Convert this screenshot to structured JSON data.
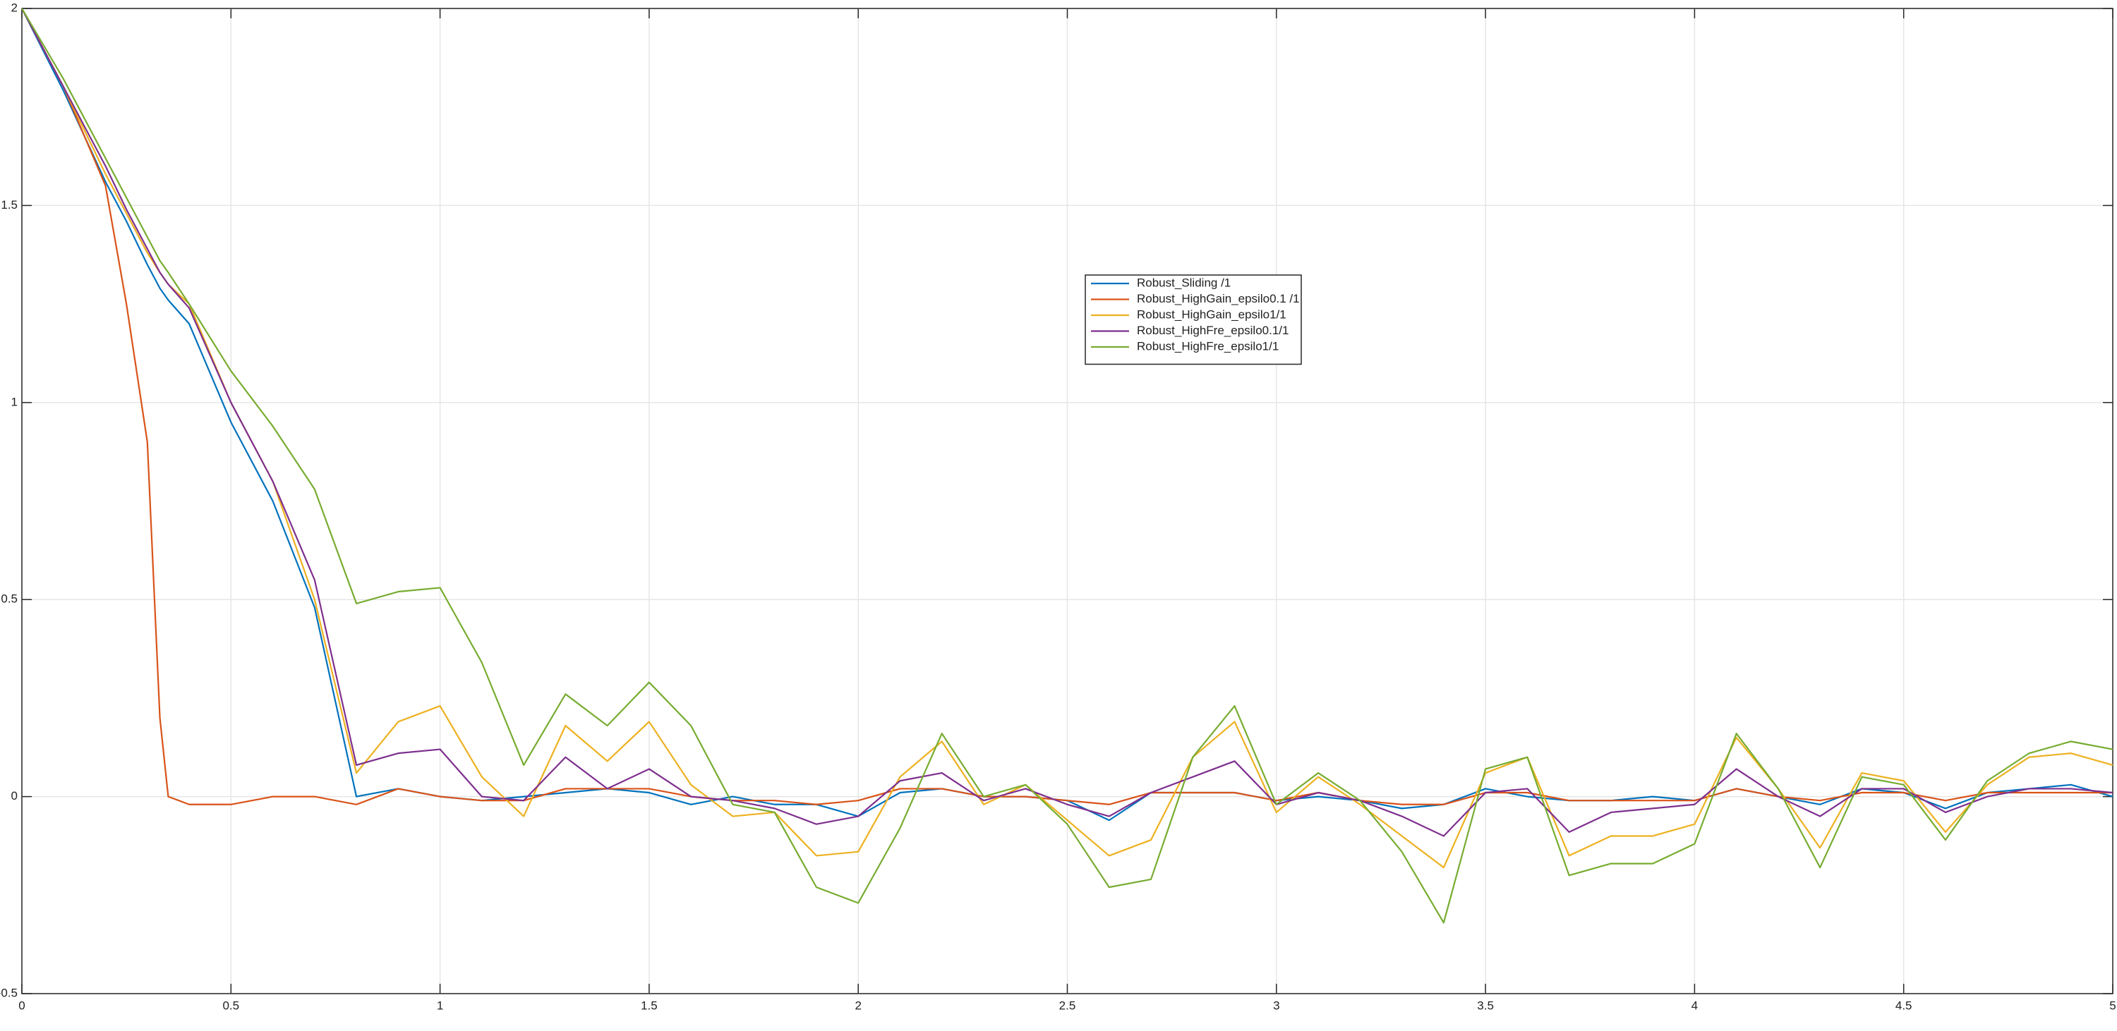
{
  "chart_data": {
    "type": "line",
    "x": [
      0,
      0.1,
      0.2,
      0.25,
      0.3,
      0.33,
      0.35,
      0.4,
      0.5,
      0.6,
      0.7,
      0.8,
      0.9,
      1.0,
      1.1,
      1.2,
      1.3,
      1.4,
      1.5,
      1.6,
      1.7,
      1.8,
      1.9,
      2.0,
      2.1,
      2.2,
      2.3,
      2.4,
      2.5,
      2.6,
      2.7,
      2.8,
      2.9,
      3.0,
      3.1,
      3.2,
      3.3,
      3.4,
      3.5,
      3.6,
      3.7,
      3.8,
      3.9,
      4.0,
      4.1,
      4.2,
      4.3,
      4.4,
      4.5,
      4.6,
      4.7,
      4.8,
      4.9,
      5.0
    ],
    "series": [
      {
        "name": "Robust_Sliding /1",
        "color": "#0072BD",
        "values": [
          2,
          1.79,
          1.56,
          1.46,
          1.35,
          1.29,
          1.26,
          1.2,
          0.95,
          0.75,
          0.48,
          0.0,
          0.02,
          0.0,
          -0.01,
          0.0,
          0.01,
          0.02,
          0.01,
          -0.02,
          0.0,
          -0.02,
          -0.02,
          -0.05,
          0.01,
          0.02,
          0.0,
          0.0,
          -0.01,
          -0.06,
          0.01,
          0.01,
          0.01,
          -0.01,
          0.0,
          -0.01,
          -0.03,
          -0.02,
          0.02,
          0.0,
          -0.01,
          -0.01,
          0.0,
          -0.01,
          0.02,
          0.0,
          -0.02,
          0.02,
          0.01,
          -0.03,
          0.01,
          0.02,
          0.03,
          0.0
        ]
      },
      {
        "name": "Robust_HighGain_epsilo0.1 /1",
        "color": "#D95319",
        "values": [
          2,
          1.8,
          1.55,
          1.25,
          0.9,
          0.2,
          0.0,
          -0.02,
          -0.02,
          0.0,
          0.0,
          -0.02,
          0.02,
          0.0,
          -0.01,
          -0.01,
          0.02,
          0.02,
          0.02,
          0.0,
          -0.01,
          -0.01,
          -0.02,
          -0.01,
          0.02,
          0.02,
          0.0,
          0.0,
          -0.01,
          -0.02,
          0.01,
          0.01,
          0.01,
          -0.01,
          0.01,
          -0.01,
          -0.02,
          -0.02,
          0.01,
          0.01,
          -0.01,
          -0.01,
          -0.01,
          -0.01,
          0.02,
          0.0,
          -0.01,
          0.01,
          0.01,
          -0.01,
          0.01,
          0.01,
          0.01,
          0.01
        ]
      },
      {
        "name": "Robust_HighGain_epsilo1/1",
        "color": "#EDB120",
        "values": [
          2,
          1.8,
          1.58,
          1.48,
          1.38,
          1.33,
          1.3,
          1.25,
          1.0,
          0.8,
          0.5,
          0.06,
          0.19,
          0.23,
          0.05,
          -0.05,
          0.18,
          0.09,
          0.19,
          0.03,
          -0.05,
          -0.04,
          -0.15,
          -0.14,
          0.05,
          0.14,
          -0.02,
          0.03,
          -0.06,
          -0.15,
          -0.11,
          0.1,
          0.19,
          -0.04,
          0.05,
          -0.02,
          -0.1,
          -0.18,
          0.06,
          0.1,
          -0.15,
          -0.1,
          -0.1,
          -0.07,
          0.15,
          0.02,
          -0.13,
          0.06,
          0.04,
          -0.09,
          0.03,
          0.1,
          0.11,
          0.08
        ]
      },
      {
        "name": "Robust_HighFre_epsilo0.1/1",
        "color": "#7E2F8E",
        "values": [
          2,
          1.8,
          1.6,
          1.49,
          1.39,
          1.33,
          1.3,
          1.24,
          1.0,
          0.8,
          0.55,
          0.08,
          0.11,
          0.12,
          0.0,
          -0.01,
          0.1,
          0.02,
          0.07,
          0.0,
          -0.01,
          -0.03,
          -0.07,
          -0.05,
          0.04,
          0.06,
          -0.01,
          0.02,
          -0.02,
          -0.05,
          0.01,
          0.05,
          0.09,
          -0.02,
          0.01,
          -0.01,
          -0.05,
          -0.1,
          0.01,
          0.02,
          -0.09,
          -0.04,
          -0.03,
          -0.02,
          0.07,
          0.0,
          -0.05,
          0.02,
          0.02,
          -0.04,
          0.0,
          0.02,
          0.02,
          0.01
        ]
      },
      {
        "name": "Robust_HighFre_epsilo1/1",
        "color": "#77AC30",
        "values": [
          2,
          1.82,
          1.62,
          1.52,
          1.42,
          1.36,
          1.33,
          1.25,
          1.08,
          0.94,
          0.78,
          0.49,
          0.52,
          0.53,
          0.34,
          0.08,
          0.26,
          0.18,
          0.29,
          0.18,
          -0.02,
          -0.04,
          -0.23,
          -0.27,
          -0.08,
          0.16,
          0.0,
          0.03,
          -0.07,
          -0.23,
          -0.21,
          0.1,
          0.23,
          -0.02,
          0.06,
          -0.01,
          -0.14,
          -0.32,
          0.07,
          0.1,
          -0.2,
          -0.17,
          -0.17,
          -0.12,
          0.16,
          0.02,
          -0.18,
          0.05,
          0.03,
          -0.11,
          0.04,
          0.11,
          0.14,
          0.12
        ]
      }
    ],
    "xlim": [
      0,
      5
    ],
    "ylim": [
      -0.5,
      2
    ],
    "xticks": [
      0,
      0.5,
      1,
      1.5,
      2,
      2.5,
      3,
      3.5,
      4,
      4.5,
      5
    ],
    "yticks": [
      -0.5,
      0,
      0.5,
      1,
      1.5,
      2
    ],
    "grid": true
  }
}
